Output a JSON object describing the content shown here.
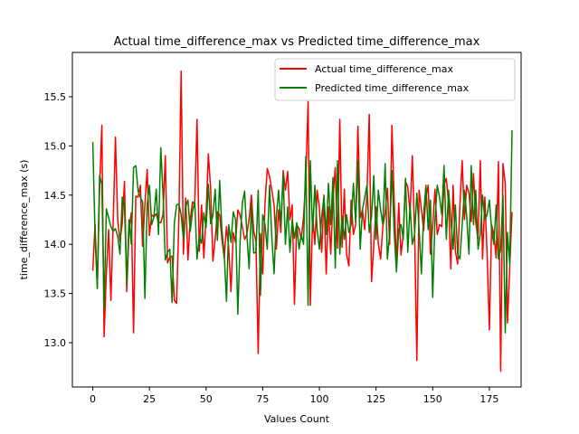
{
  "chart_data": {
    "type": "line",
    "title": "Actual time_difference_max vs Predicted time_difference_max",
    "xlabel": "Values Count",
    "ylabel": "time_difference_max (s)",
    "xlim": [
      -9,
      189
    ],
    "ylim": [
      12.55,
      15.95
    ],
    "xticks": [
      0,
      25,
      50,
      75,
      100,
      125,
      150,
      175
    ],
    "yticks": [
      13.0,
      13.5,
      14.0,
      14.5,
      15.0,
      15.5
    ],
    "ytick_labels": [
      "13.0",
      "13.5",
      "14.0",
      "14.5",
      "15.0",
      "15.5"
    ],
    "grid": false,
    "legend_position": "upper right",
    "series": [
      {
        "name": "Actual time_difference_max",
        "color": "#ff0000",
        "values": [
          13.73,
          14.2,
          13.56,
          14.55,
          15.21,
          13.06,
          13.71,
          14.15,
          13.43,
          14.22,
          15.09,
          14.25,
          14.03,
          14.21,
          14.64,
          13.52,
          14.15,
          14.32,
          13.1,
          14.49,
          14.48,
          14.6,
          13.98,
          14.4,
          14.76,
          14.09,
          14.3,
          14.28,
          14.31,
          14.22,
          14.22,
          14.3,
          14.9,
          13.81,
          13.87,
          13.88,
          13.43,
          13.4,
          14.27,
          15.76,
          13.9,
          14.47,
          13.84,
          14.25,
          14.43,
          14.41,
          15.27,
          13.93,
          14.4,
          13.86,
          14.3,
          14.92,
          14.57,
          13.83,
          14.05,
          14.33,
          14.3,
          14.05,
          13.86,
          14.18,
          13.96,
          13.52,
          14.12,
          14.02,
          14.35,
          14.3,
          14.18,
          14.05,
          14.1,
          14.26,
          14.5,
          14.14,
          14.03,
          12.89,
          14.11,
          13.7,
          14.42,
          14.77,
          14.69,
          14.55,
          14.4,
          13.95,
          14.35,
          14.12,
          14.75,
          14.55,
          14.74,
          14.25,
          14.4,
          13.39,
          14.2,
          14.16,
          14.05,
          14.28,
          14.66,
          15.45,
          13.38,
          14.3,
          14.0,
          14.55,
          14.37,
          13.92,
          14.5,
          13.7,
          14.38,
          13.9,
          14.47,
          14.78,
          13.96,
          15.27,
          13.97,
          14.56,
          13.9,
          13.78,
          14.45,
          14.1,
          14.2,
          15.2,
          14.27,
          14.35,
          14.15,
          14.52,
          15.32,
          13.62,
          13.99,
          14.38,
          14.01,
          13.85,
          14.18,
          14.32,
          14.57,
          14.0,
          15.21,
          14.45,
          13.79,
          14.42,
          13.89,
          14.1,
          14.64,
          14.58,
          14.32,
          14.9,
          14.12,
          12.82,
          14.55,
          14.36,
          14.14,
          14.48,
          14.6,
          13.9,
          14.19,
          14.56,
          14.1,
          14.2,
          14.18,
          14.61,
          14.67,
          14.42,
          13.75,
          14.6,
          13.93,
          13.8,
          14.4,
          14.85,
          14.25,
          14.6,
          14.52,
          14.23,
          14.72,
          14.22,
          14.05,
          14.85,
          13.85,
          14.48,
          13.9,
          13.13,
          14.2,
          14.1,
          13.86,
          14.84,
          12.71,
          14.82,
          14.62,
          13.2,
          13.78,
          14.33
        ]
      },
      {
        "name": "Predicted time_difference_max",
        "color": "#008000",
        "values": [
          15.04,
          14.1,
          13.55,
          14.7,
          14.61,
          13.36,
          14.36,
          14.27,
          14.18,
          14.13,
          14.16,
          14.08,
          13.9,
          14.48,
          14.39,
          13.6,
          14.25,
          14.0,
          14.78,
          14.8,
          14.54,
          14.48,
          14.43,
          13.45,
          14.4,
          14.6,
          14.2,
          14.28,
          14.56,
          14.1,
          14.98,
          14.52,
          13.84,
          13.92,
          13.95,
          13.41,
          14.22,
          14.4,
          14.41,
          14.3,
          14.05,
          14.38,
          14.45,
          14.13,
          14.33,
          14.44,
          13.85,
          14.08,
          14.01,
          14.32,
          14.17,
          14.61,
          14.21,
          14.29,
          14.56,
          14.04,
          14.65,
          14.14,
          13.9,
          13.42,
          14.2,
          14.02,
          14.33,
          14.25,
          13.29,
          14.02,
          14.42,
          14.54,
          14.1,
          13.75,
          14.4,
          13.91,
          13.92,
          14.55,
          13.48,
          14.3,
          14.2,
          13.95,
          14.6,
          14.08,
          13.7,
          14.28,
          14.55,
          14.2,
          14.7,
          14.0,
          14.38,
          13.92,
          14.25,
          14.06,
          14.22,
          13.95,
          14.1,
          14.0,
          14.89,
          13.38,
          14.85,
          14.12,
          14.6,
          14.15,
          13.95,
          14.28,
          14.48,
          14.1,
          14.62,
          14.2,
          14.68,
          13.76,
          14.85,
          13.9,
          14.29,
          14.05,
          14.3,
          14.12,
          14.2,
          14.62,
          14.22,
          14.85,
          13.95,
          14.35,
          14.48,
          14.6,
          14.12,
          14.28,
          14.7,
          14.05,
          14.55,
          14.35,
          14.2,
          14.82,
          13.85,
          14.1,
          14.75,
          14.12,
          13.72,
          14.15,
          14.2,
          14.05,
          14.67,
          13.92,
          14.4,
          14.0,
          14.1,
          14.52,
          14.15,
          13.7,
          14.3,
          14.6,
          14.15,
          14.45,
          13.46,
          14.25,
          14.6,
          14.48,
          14.3,
          14.8,
          14.05,
          14.55,
          14.25,
          13.95,
          14.4,
          13.9,
          13.85,
          14.2,
          14.55,
          14.28,
          13.9,
          14.8,
          14.2,
          14.55,
          13.95,
          14.1,
          14.5,
          14.25,
          14.3,
          14.45,
          14.15,
          14.0,
          14.4,
          13.85,
          13.95,
          14.5,
          13.1,
          14.12,
          13.8,
          15.16
        ]
      }
    ]
  }
}
